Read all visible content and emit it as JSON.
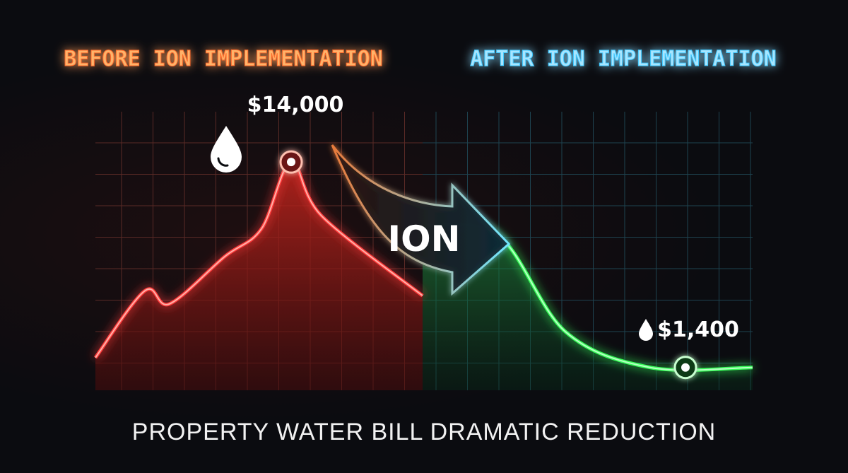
{
  "chart_data": {
    "type": "area",
    "title": "",
    "caption": "PROPERTY WATER BILL DRAMATIC REDUCTION",
    "panels": [
      {
        "label": "BEFORE ION IMPLEMENTATION",
        "color": "#ff6a2a"
      },
      {
        "label": "AFTER ION IMPLEMENTATION",
        "color": "#3ec8ff"
      }
    ],
    "transition_label": "ION",
    "annotations": [
      {
        "label": "$14,000",
        "value": 14000
      },
      {
        "label": "$1,400",
        "value": 1400
      }
    ],
    "series": [
      {
        "values": [
          2000,
          6100,
          5300,
          8200,
          9900,
          14000,
          10700,
          5800
        ]
      },
      {
        "values": [
          10100,
          9500,
          3600,
          1400,
          1400
        ]
      }
    ],
    "xlabel": "",
    "ylabel": "",
    "ylim": [
      0,
      17000
    ],
    "grid": true,
    "colors": {
      "before_line": "#ff3b3b",
      "before_fill": "#8a1a16",
      "after_line": "#39ff5a",
      "after_fill": "#0e5a2a",
      "divider": "#cfe9ff"
    }
  }
}
